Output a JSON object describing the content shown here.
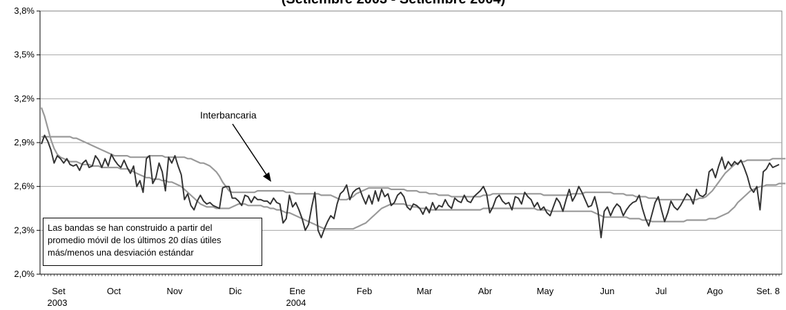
{
  "chart": {
    "title": "(Setiembre 2003 - Setiembre 2004)",
    "annotation": "Interbancaria",
    "note_lines": [
      "Las bandas se han construido a partir del",
      "promedio móvil de los últimos 20 días útiles",
      "más/menos una desviación estándar"
    ]
  },
  "chart_data": {
    "type": "line",
    "ylim": [
      2.0,
      3.8
    ],
    "yticks": [
      "2,0%",
      "2,3%",
      "2,6%",
      "2,9%",
      "3,2%",
      "3,5%",
      "3,8%"
    ],
    "yticks_values": [
      2.0,
      2.3,
      2.6,
      2.9,
      3.2,
      3.5,
      3.8
    ],
    "months": [
      {
        "label": "Set",
        "sub": "2003"
      },
      {
        "label": "Oct",
        "sub": ""
      },
      {
        "label": "Nov",
        "sub": ""
      },
      {
        "label": "Dic",
        "sub": ""
      },
      {
        "label": "Ene",
        "sub": "2004"
      },
      {
        "label": "Feb",
        "sub": ""
      },
      {
        "label": "Mar",
        "sub": ""
      },
      {
        "label": "Abr",
        "sub": ""
      },
      {
        "label": "May",
        "sub": ""
      },
      {
        "label": "Jun",
        "sub": ""
      },
      {
        "label": "Jul",
        "sub": ""
      },
      {
        "label": "Ago",
        "sub": ""
      },
      {
        "label": "Set. 8",
        "sub": ""
      }
    ],
    "grid": true,
    "series": [
      {
        "name": "Interbancaria",
        "role": "main",
        "color": "#333333",
        "values": [
          2.89,
          2.95,
          2.91,
          2.85,
          2.76,
          2.81,
          2.79,
          2.76,
          2.79,
          2.75,
          2.74,
          2.75,
          2.71,
          2.76,
          2.78,
          2.73,
          2.74,
          2.81,
          2.78,
          2.73,
          2.79,
          2.74,
          2.82,
          2.78,
          2.75,
          2.73,
          2.78,
          2.73,
          2.69,
          2.74,
          2.6,
          2.64,
          2.56,
          2.79,
          2.81,
          2.62,
          2.66,
          2.76,
          2.7,
          2.57,
          2.8,
          2.76,
          2.81,
          2.74,
          2.68,
          2.51,
          2.55,
          2.47,
          2.44,
          2.5,
          2.54,
          2.5,
          2.48,
          2.49,
          2.47,
          2.46,
          2.45,
          2.59,
          2.6,
          2.6,
          2.52,
          2.52,
          2.5,
          2.47,
          2.54,
          2.53,
          2.49,
          2.53,
          2.51,
          2.51,
          2.5,
          2.5,
          2.48,
          2.52,
          2.49,
          2.48,
          2.35,
          2.38,
          2.54,
          2.46,
          2.49,
          2.44,
          2.38,
          2.3,
          2.34,
          2.46,
          2.56,
          2.3,
          2.25,
          2.31,
          2.36,
          2.4,
          2.38,
          2.48,
          2.55,
          2.57,
          2.61,
          2.51,
          2.56,
          2.58,
          2.59,
          2.53,
          2.48,
          2.54,
          2.48,
          2.57,
          2.5,
          2.58,
          2.53,
          2.55,
          2.47,
          2.49,
          2.54,
          2.56,
          2.53,
          2.46,
          2.44,
          2.48,
          2.47,
          2.45,
          2.41,
          2.46,
          2.42,
          2.49,
          2.44,
          2.47,
          2.46,
          2.51,
          2.47,
          2.45,
          2.52,
          2.5,
          2.49,
          2.54,
          2.5,
          2.49,
          2.53,
          2.55,
          2.57,
          2.6,
          2.55,
          2.42,
          2.46,
          2.52,
          2.54,
          2.5,
          2.48,
          2.49,
          2.44,
          2.53,
          2.52,
          2.48,
          2.56,
          2.53,
          2.51,
          2.46,
          2.49,
          2.44,
          2.46,
          2.42,
          2.4,
          2.46,
          2.52,
          2.49,
          2.43,
          2.51,
          2.58,
          2.5,
          2.54,
          2.6,
          2.56,
          2.51,
          2.46,
          2.47,
          2.53,
          2.44,
          2.25,
          2.43,
          2.46,
          2.4,
          2.45,
          2.48,
          2.46,
          2.4,
          2.44,
          2.47,
          2.49,
          2.5,
          2.54,
          2.45,
          2.38,
          2.33,
          2.41,
          2.49,
          2.53,
          2.44,
          2.36,
          2.42,
          2.5,
          2.46,
          2.44,
          2.47,
          2.51,
          2.55,
          2.53,
          2.48,
          2.58,
          2.54,
          2.53,
          2.55,
          2.7,
          2.72,
          2.66,
          2.74,
          2.8,
          2.72,
          2.77,
          2.74,
          2.77,
          2.75,
          2.78,
          2.73,
          2.67,
          2.59,
          2.56,
          2.6,
          2.44,
          2.7,
          2.72,
          2.76,
          2.73,
          2.74,
          2.75
        ]
      },
      {
        "name": "",
        "role": "upper-band",
        "color": "#999999",
        "values": [
          2.94,
          2.94,
          2.94,
          2.94,
          2.94,
          2.94,
          2.94,
          2.94,
          2.94,
          2.94,
          2.93,
          2.93,
          2.92,
          2.91,
          2.9,
          2.89,
          2.88,
          2.87,
          2.86,
          2.85,
          2.84,
          2.83,
          2.82,
          2.81,
          2.81,
          2.81,
          2.81,
          2.81,
          2.8,
          2.8,
          2.8,
          2.8,
          2.8,
          2.8,
          2.81,
          2.81,
          2.81,
          2.81,
          2.81,
          2.8,
          2.8,
          2.8,
          2.8,
          2.8,
          2.8,
          2.8,
          2.79,
          2.79,
          2.78,
          2.77,
          2.76,
          2.76,
          2.75,
          2.74,
          2.72,
          2.7,
          2.67,
          2.63,
          2.6,
          2.57,
          2.56,
          2.56,
          2.56,
          2.56,
          2.56,
          2.56,
          2.56,
          2.56,
          2.57,
          2.57,
          2.57,
          2.57,
          2.57,
          2.57,
          2.57,
          2.57,
          2.57,
          2.56,
          2.56,
          2.56,
          2.55,
          2.55,
          2.55,
          2.55,
          2.55,
          2.55,
          2.55,
          2.55,
          2.54,
          2.54,
          2.54,
          2.54,
          2.53,
          2.52,
          2.51,
          2.51,
          2.51,
          2.52,
          2.53,
          2.55,
          2.56,
          2.57,
          2.58,
          2.59,
          2.59,
          2.59,
          2.59,
          2.59,
          2.59,
          2.59,
          2.58,
          2.58,
          2.58,
          2.58,
          2.58,
          2.57,
          2.57,
          2.57,
          2.57,
          2.56,
          2.56,
          2.56,
          2.55,
          2.55,
          2.55,
          2.54,
          2.54,
          2.54,
          2.54,
          2.53,
          2.53,
          2.53,
          2.53,
          2.53,
          2.53,
          2.53,
          2.53,
          2.53,
          2.53,
          2.54,
          2.54,
          2.54,
          2.55,
          2.55,
          2.55,
          2.55,
          2.55,
          2.55,
          2.55,
          2.55,
          2.55,
          2.55,
          2.55,
          2.55,
          2.55,
          2.55,
          2.55,
          2.55,
          2.54,
          2.54,
          2.54,
          2.54,
          2.54,
          2.54,
          2.54,
          2.54,
          2.54,
          2.55,
          2.55,
          2.55,
          2.55,
          2.56,
          2.56,
          2.56,
          2.56,
          2.56,
          2.56,
          2.56,
          2.56,
          2.56,
          2.55,
          2.55,
          2.55,
          2.55,
          2.54,
          2.54,
          2.54,
          2.53,
          2.53,
          2.53,
          2.53,
          2.52,
          2.52,
          2.52,
          2.51,
          2.51,
          2.51,
          2.51,
          2.51,
          2.51,
          2.51,
          2.51,
          2.51,
          2.51,
          2.51,
          2.51,
          2.51,
          2.52,
          2.52,
          2.53,
          2.55,
          2.57,
          2.6,
          2.63,
          2.66,
          2.69,
          2.71,
          2.73,
          2.75,
          2.76,
          2.77,
          2.77,
          2.78,
          2.78,
          2.78,
          2.78,
          2.78,
          2.78,
          2.78,
          2.78,
          2.79,
          2.79,
          2.79,
          2.79,
          2.79
        ]
      },
      {
        "name": "",
        "role": "lower-band",
        "color": "#999999",
        "values": [
          3.14,
          3.08,
          3.0,
          2.92,
          2.86,
          2.82,
          2.8,
          2.79,
          2.78,
          2.77,
          2.77,
          2.77,
          2.76,
          2.75,
          2.75,
          2.75,
          2.74,
          2.74,
          2.74,
          2.73,
          2.73,
          2.73,
          2.73,
          2.73,
          2.73,
          2.72,
          2.72,
          2.72,
          2.71,
          2.7,
          2.69,
          2.68,
          2.67,
          2.66,
          2.66,
          2.65,
          2.65,
          2.65,
          2.64,
          2.64,
          2.63,
          2.63,
          2.62,
          2.61,
          2.6,
          2.58,
          2.56,
          2.54,
          2.52,
          2.5,
          2.48,
          2.47,
          2.46,
          2.46,
          2.46,
          2.45,
          2.45,
          2.45,
          2.45,
          2.45,
          2.46,
          2.47,
          2.48,
          2.48,
          2.48,
          2.47,
          2.47,
          2.47,
          2.47,
          2.47,
          2.46,
          2.46,
          2.45,
          2.45,
          2.44,
          2.44,
          2.43,
          2.42,
          2.42,
          2.41,
          2.4,
          2.39,
          2.38,
          2.37,
          2.36,
          2.35,
          2.34,
          2.33,
          2.32,
          2.31,
          2.31,
          2.31,
          2.31,
          2.31,
          2.31,
          2.31,
          2.31,
          2.31,
          2.31,
          2.32,
          2.33,
          2.34,
          2.35,
          2.37,
          2.39,
          2.41,
          2.43,
          2.45,
          2.46,
          2.47,
          2.48,
          2.48,
          2.48,
          2.48,
          2.48,
          2.47,
          2.47,
          2.46,
          2.46,
          2.45,
          2.45,
          2.45,
          2.44,
          2.44,
          2.44,
          2.44,
          2.44,
          2.44,
          2.44,
          2.44,
          2.44,
          2.44,
          2.44,
          2.44,
          2.44,
          2.44,
          2.44,
          2.44,
          2.44,
          2.45,
          2.45,
          2.45,
          2.45,
          2.45,
          2.45,
          2.45,
          2.45,
          2.45,
          2.45,
          2.45,
          2.45,
          2.45,
          2.45,
          2.45,
          2.45,
          2.45,
          2.44,
          2.44,
          2.44,
          2.44,
          2.43,
          2.43,
          2.43,
          2.43,
          2.43,
          2.43,
          2.43,
          2.43,
          2.43,
          2.43,
          2.43,
          2.43,
          2.43,
          2.43,
          2.42,
          2.41,
          2.4,
          2.39,
          2.39,
          2.39,
          2.39,
          2.39,
          2.39,
          2.39,
          2.39,
          2.38,
          2.38,
          2.38,
          2.38,
          2.37,
          2.37,
          2.37,
          2.36,
          2.36,
          2.36,
          2.36,
          2.36,
          2.36,
          2.36,
          2.36,
          2.36,
          2.36,
          2.36,
          2.37,
          2.37,
          2.37,
          2.37,
          2.37,
          2.37,
          2.37,
          2.38,
          2.38,
          2.38,
          2.39,
          2.4,
          2.41,
          2.42,
          2.44,
          2.46,
          2.49,
          2.51,
          2.53,
          2.55,
          2.57,
          2.58,
          2.59,
          2.6,
          2.6,
          2.61,
          2.61,
          2.61,
          2.61,
          2.62,
          2.62,
          2.62
        ]
      }
    ]
  }
}
